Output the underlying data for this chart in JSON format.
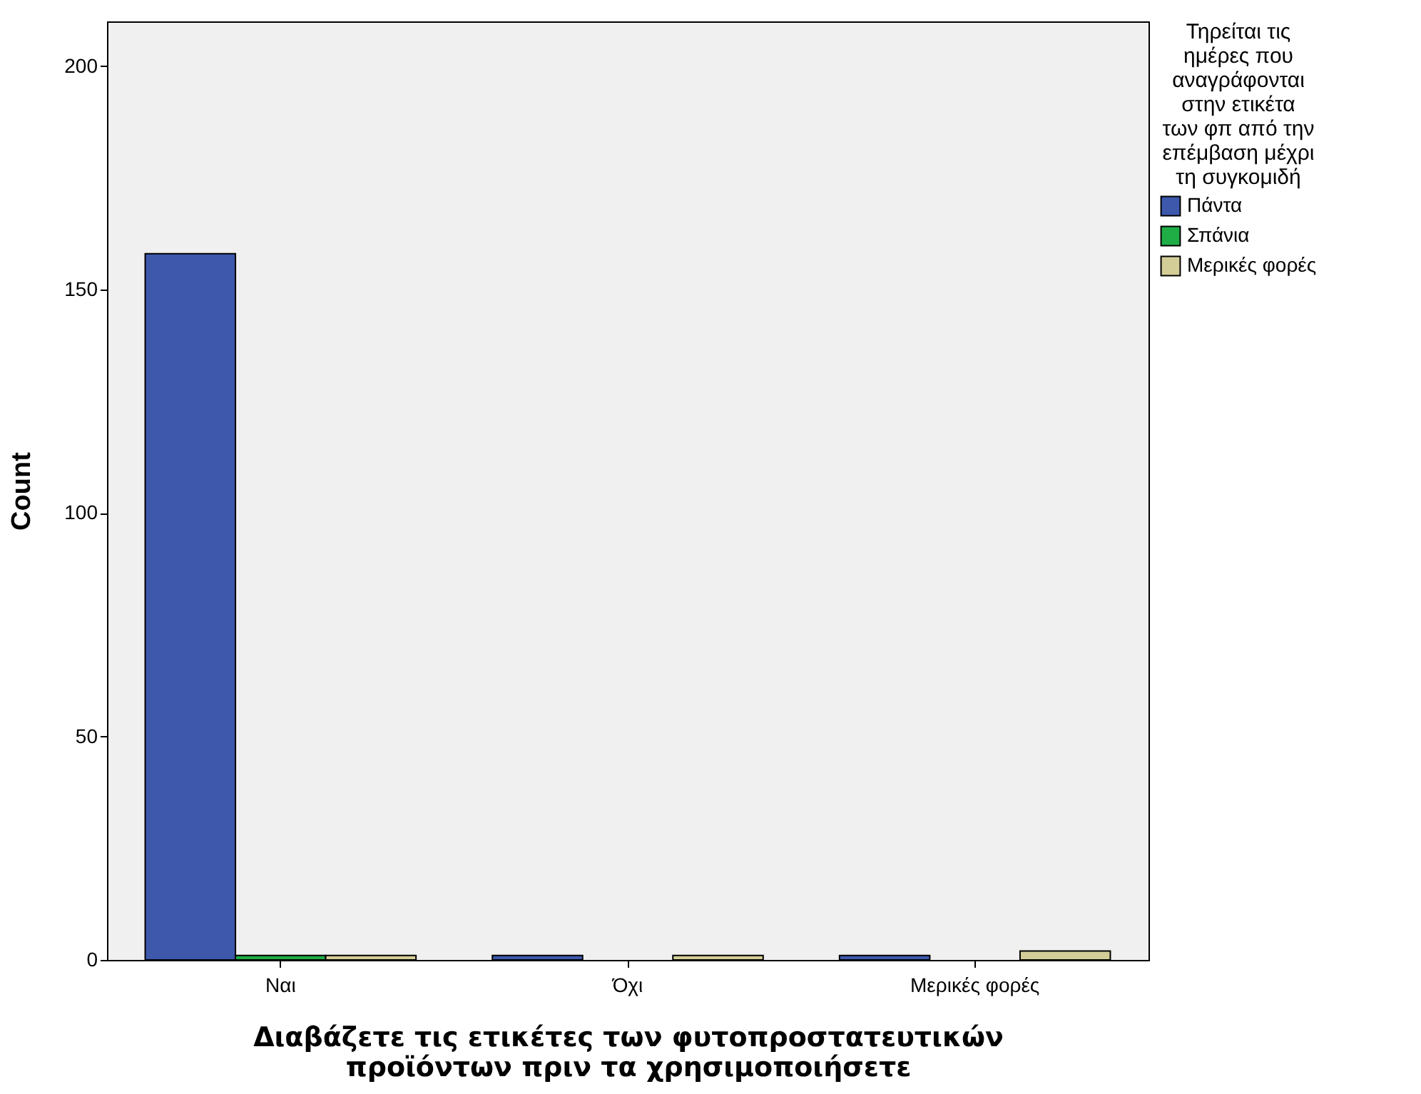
{
  "chart_data": {
    "type": "bar",
    "xlabel": "Διαβάζετε τις ετικέτες των φυτοπροστατευτικών προϊόντων πριν τα χρησιμοποιήσετε",
    "ylabel": "Count",
    "legend_title": "Τηρείται τις ημέρες που αναγράφονται στην ετικέτα των φπ από την επέμβαση μέχρι τη συγκομιδή",
    "categories": [
      "Ναι",
      "Όχι",
      "Μερικές φορές"
    ],
    "series": [
      {
        "name": "Πάντα",
        "color": "#3e58ac",
        "values": [
          158,
          1,
          1
        ]
      },
      {
        "name": "Σπάνια",
        "color": "#1fad46",
        "values": [
          1,
          null,
          null
        ]
      },
      {
        "name": "Μερικές φορές",
        "color": "#d3ce97",
        "values": [
          1,
          1,
          2
        ]
      }
    ],
    "ylim": [
      0,
      210
    ],
    "yticks": [
      0,
      50,
      100,
      150,
      200
    ],
    "grid": false,
    "legend": "top right"
  }
}
